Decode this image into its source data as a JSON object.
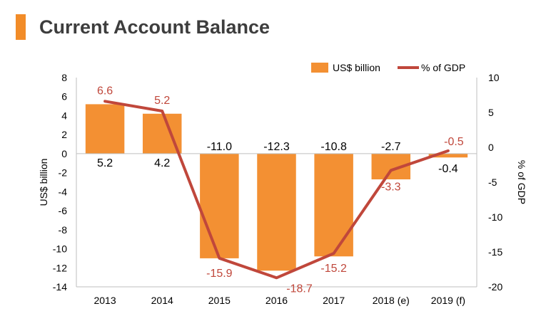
{
  "page": {
    "title": "Current Account Balance"
  },
  "colors": {
    "accent": "#F28C28",
    "bar": "#F39033",
    "line": "#C0473B",
    "axis": "#BFBFBF",
    "text": "#000000"
  },
  "legend": {
    "bar_label": "US$ billion",
    "line_label": "% of GDP"
  },
  "chart_data": {
    "type": "bar",
    "categories": [
      "2013",
      "2014",
      "2015",
      "2016",
      "2017",
      "2018 (e)",
      "2019 (f)"
    ],
    "series": [
      {
        "name": "US$ billion",
        "type": "bar",
        "axis": "left",
        "values": [
          5.2,
          4.2,
          -11.0,
          -12.3,
          -10.8,
          -2.7,
          -0.4
        ],
        "labels": [
          "5.2",
          "4.2",
          "-11.0",
          "-12.3",
          "-10.8",
          "-2.7",
          "-0.4"
        ]
      },
      {
        "name": "% of GDP",
        "type": "line",
        "axis": "right",
        "values": [
          6.6,
          5.2,
          -15.9,
          -18.7,
          -15.2,
          -3.3,
          -0.5
        ],
        "labels": [
          "6.6",
          "5.2",
          "-15.9",
          "-18.7",
          "-15.2",
          "-3.3",
          "-0.5"
        ]
      }
    ],
    "title": "Current Account Balance",
    "ylabel": "US$ billion",
    "y2label": "% of GDP",
    "ylim": [
      -14,
      8
    ],
    "y2lim": [
      -20,
      10
    ],
    "yticks": [
      8,
      6,
      4,
      2,
      0,
      -2,
      -4,
      -6,
      -8,
      -10,
      -12,
      -14
    ],
    "y2ticks": [
      10,
      5,
      0,
      -5,
      -10,
      -15,
      -20
    ],
    "legend_position": "top-right",
    "grid": false
  }
}
